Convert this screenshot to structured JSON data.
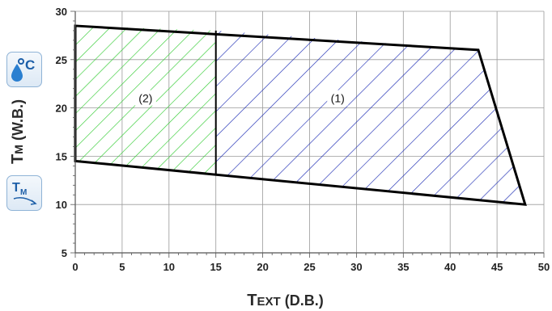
{
  "chart_data": {
    "type": "area",
    "xlabel": "TEXT (D.B.)",
    "ylabel": "TM (W.B.)",
    "xlim": [
      0,
      50
    ],
    "ylim": [
      5,
      30
    ],
    "x_ticks": [
      0,
      5,
      10,
      15,
      20,
      25,
      30,
      35,
      40,
      45,
      50
    ],
    "y_ticks": [
      5,
      10,
      15,
      20,
      25,
      30
    ],
    "grid": true,
    "regions": [
      {
        "label": "(1)",
        "hatch_color": "#1f2fb5",
        "polygon": [
          [
            15,
            28
          ],
          [
            43,
            26
          ],
          [
            48,
            10
          ],
          [
            15,
            13
          ]
        ]
      },
      {
        "label": "(2)",
        "hatch_color": "#33cc33",
        "polygon": [
          [
            0,
            28.5
          ],
          [
            15,
            28
          ],
          [
            15,
            13
          ],
          [
            0,
            14.5
          ]
        ]
      }
    ],
    "outline": [
      [
        0,
        28.5
      ],
      [
        43,
        26
      ],
      [
        48,
        10
      ],
      [
        0,
        14.5
      ]
    ],
    "outline_color": "#000000"
  },
  "icons": {
    "temperature": "thermometer-celsius-icon",
    "wet_bulb": "wet-bulb-temperature-icon"
  }
}
